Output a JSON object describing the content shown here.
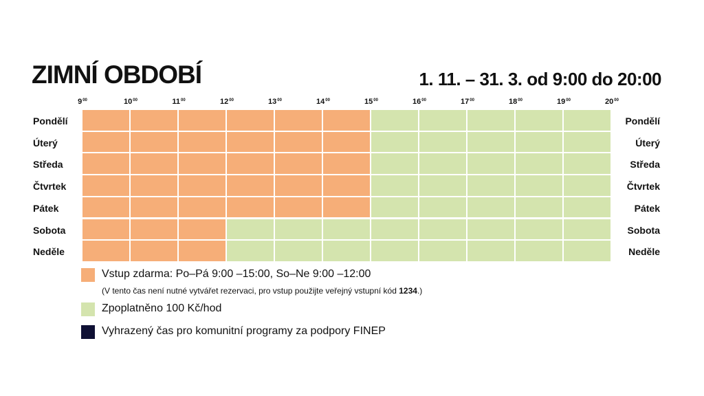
{
  "title": "ZIMNÍ OBDOBÍ",
  "period": "1. 11. – 31. 3. od 9:00 do 20:00",
  "colors": {
    "free": "#F6AE78",
    "paid": "#D4E4AE",
    "reserved": "#0F1034"
  },
  "chart_data": {
    "type": "heatmap",
    "hour_ticks": [
      "9",
      "10",
      "11",
      "12",
      "13",
      "14",
      "15",
      "16",
      "17",
      "18",
      "19",
      "20"
    ],
    "tick_suffix": "00",
    "x_range": [
      9,
      20
    ],
    "days": [
      "Pondělí",
      "Úterý",
      "Středa",
      "Čtvrtek",
      "Pátek",
      "Sobota",
      "Neděle"
    ],
    "rows": [
      {
        "day": "Pondělí",
        "free_until": 15
      },
      {
        "day": "Úterý",
        "free_until": 15
      },
      {
        "day": "Středa",
        "free_until": 15
      },
      {
        "day": "Čtvrtek",
        "free_until": 15
      },
      {
        "day": "Pátek",
        "free_until": 15
      },
      {
        "day": "Sobota",
        "free_until": 12
      },
      {
        "day": "Neděle",
        "free_until": 12
      }
    ]
  },
  "legend": {
    "free": "Vstup zdarma: Po–Pá 9:00 –15:00, So–Ne 9:00 –12:00",
    "free_note_pre": "(V tento čas není nutné vytvářet rezervaci, pro vstup použijte veřejný vstupní kód ",
    "free_note_code": "1234",
    "free_note_post": ".)",
    "paid": "Zpoplatněno 100 Kč/hod",
    "reserved": "Vyhrazený čas pro komunitní programy za podpory FINEP"
  }
}
